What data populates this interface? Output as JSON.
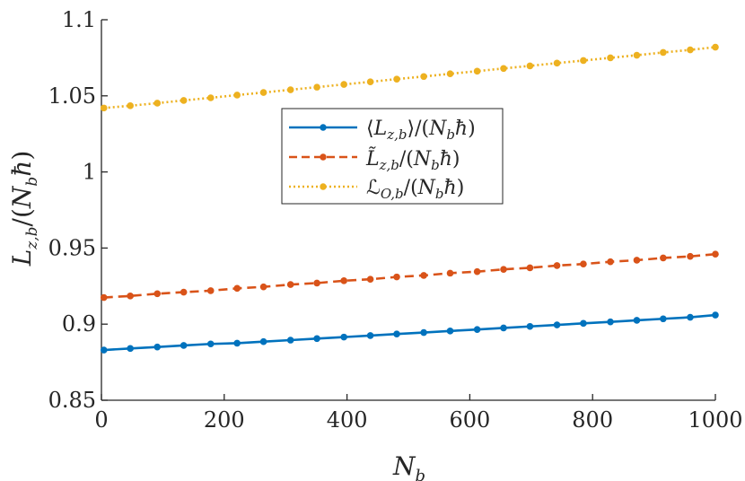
{
  "chart_data": {
    "type": "line",
    "title": "",
    "xlabel": "N_b",
    "ylabel": "L_{z,b}/(N_b ħ)",
    "xlim": [
      0,
      1000
    ],
    "ylim": [
      0.85,
      1.1
    ],
    "xticks": [
      0,
      200,
      400,
      600,
      800,
      1000
    ],
    "xtick_labels": [
      "0",
      "200",
      "400",
      "600",
      "800",
      "1000"
    ],
    "yticks": [
      0.85,
      0.9,
      0.95,
      1.0,
      1.05,
      1.1
    ],
    "ytick_labels": [
      "0.85",
      "0.9",
      "0.95",
      "1",
      "1.05",
      "1.1"
    ],
    "grid": false,
    "legend_position": "center",
    "x": [
      4,
      47,
      91,
      134,
      178,
      221,
      264,
      308,
      351,
      395,
      438,
      481,
      525,
      568,
      612,
      655,
      698,
      742,
      785,
      829,
      872,
      915,
      959,
      1000
    ],
    "series": [
      {
        "name": "⟨L_{z,b}⟩/(N_b ħ)",
        "color": "#0072BD",
        "line_style": "solid",
        "values": [
          0.883,
          0.884,
          0.885,
          0.886,
          0.887,
          0.8875,
          0.8885,
          0.8895,
          0.8905,
          0.8915,
          0.8925,
          0.8935,
          0.8945,
          0.8955,
          0.8965,
          0.8975,
          0.8985,
          0.8995,
          0.9005,
          0.9015,
          0.9025,
          0.9035,
          0.9045,
          0.906
        ]
      },
      {
        "name": "L̃_{z,b}/(N_b ħ)",
        "color": "#D95319",
        "line_style": "dashed",
        "values": [
          0.9175,
          0.9185,
          0.92,
          0.921,
          0.922,
          0.9235,
          0.9245,
          0.926,
          0.927,
          0.9285,
          0.9295,
          0.931,
          0.932,
          0.9335,
          0.9345,
          0.936,
          0.937,
          0.9385,
          0.9395,
          0.941,
          0.942,
          0.9435,
          0.9445,
          0.946
        ]
      },
      {
        "name": "ℒ_{O,b}/(N_b ħ)",
        "color": "#EDB120",
        "line_style": "dotted",
        "values": [
          1.042,
          1.0435,
          1.0452,
          1.047,
          1.0487,
          1.0505,
          1.0522,
          1.054,
          1.0557,
          1.0575,
          1.0592,
          1.061,
          1.0627,
          1.0645,
          1.0662,
          1.068,
          1.0697,
          1.0715,
          1.0732,
          1.075,
          1.0767,
          1.0785,
          1.0802,
          1.082
        ]
      }
    ]
  }
}
